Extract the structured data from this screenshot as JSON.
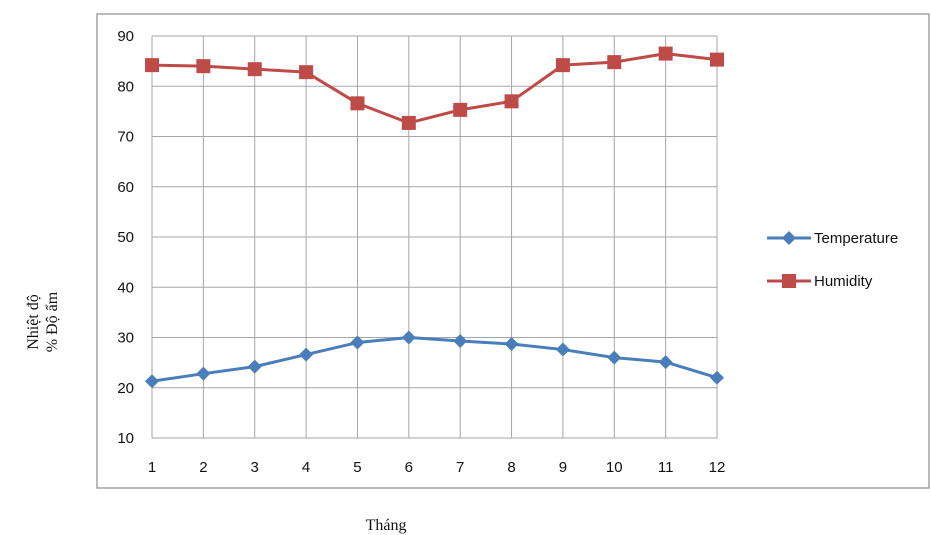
{
  "chart_data": {
    "type": "line",
    "x": [
      1,
      2,
      3,
      4,
      5,
      6,
      7,
      8,
      9,
      10,
      11,
      12
    ],
    "xtick_labels": [
      "1",
      "2",
      "3",
      "4",
      "5",
      "6",
      "7",
      "8",
      "9",
      "10",
      "11",
      "12"
    ],
    "ytick_labels": [
      "10",
      "20",
      "30",
      "40",
      "50",
      "60",
      "70",
      "80",
      "90"
    ],
    "ylim": [
      10,
      90
    ],
    "grid": true,
    "legend_position": "right",
    "xlabel": "Tháng",
    "ylabel_lines": [
      "Nhiệt độ",
      "% Độ ẩm"
    ],
    "series": [
      {
        "name": "Temperature",
        "marker": "diamond",
        "color": "#4a7ebb",
        "values": [
          21.3,
          22.8,
          24.2,
          26.6,
          29.0,
          30.0,
          29.3,
          28.7,
          27.6,
          26.0,
          25.1,
          22.0
        ]
      },
      {
        "name": "Humidity",
        "marker": "square",
        "color": "#be4b48",
        "values": [
          84.2,
          84.0,
          83.4,
          82.8,
          76.6,
          72.7,
          75.3,
          77.0,
          84.2,
          84.8,
          86.5,
          85.3
        ]
      }
    ]
  }
}
